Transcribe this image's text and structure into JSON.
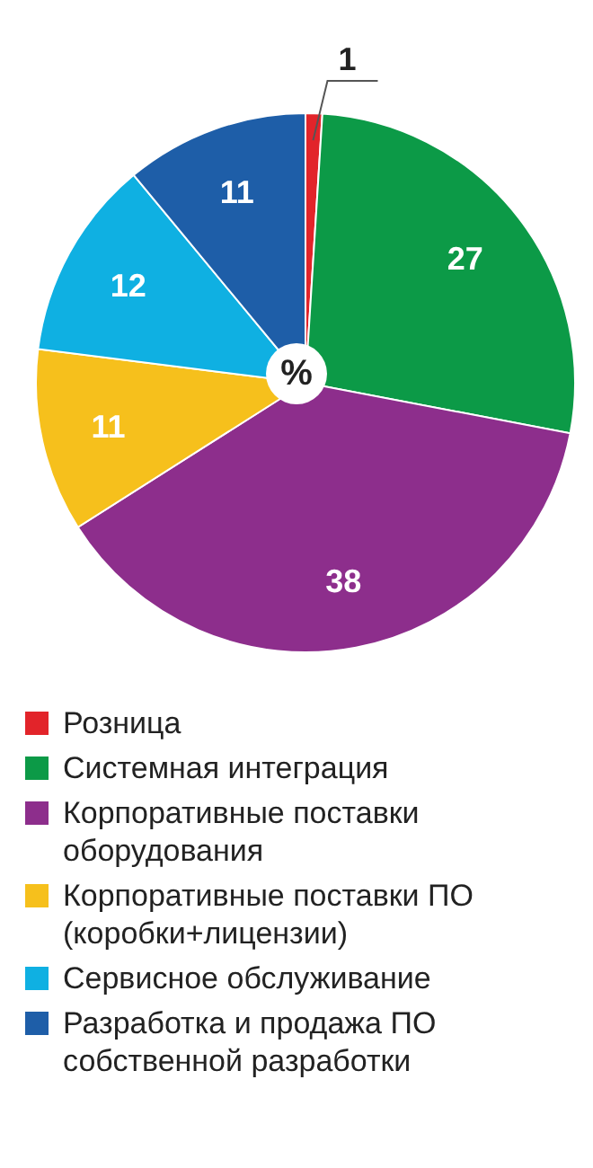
{
  "chart_data": {
    "type": "pie",
    "categories": [
      "Розница",
      "Системная интеграция",
      "Корпоративные поставки оборудования",
      "Корпоративные поставки ПО (коробки+лицензии)",
      "Сервисное обслуживание",
      "Разработка и продажа ПО собственной разработки"
    ],
    "values": [
      1,
      27,
      38,
      11,
      12,
      11
    ],
    "colors": [
      "#e2242a",
      "#0c9a47",
      "#8d2e8c",
      "#f6c01c",
      "#0fb0e2",
      "#1e5ea8"
    ],
    "data_labels": true,
    "legend": "bottom",
    "annotations": [
      "%"
    ]
  }
}
